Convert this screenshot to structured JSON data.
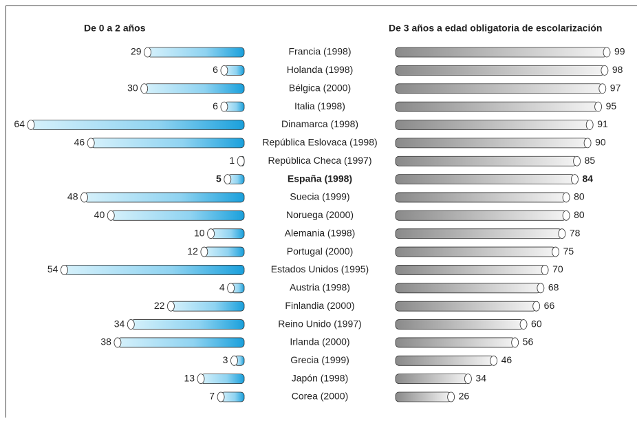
{
  "chart_data": {
    "type": "butterfly",
    "categories": [
      "Francia (1998)",
      "Holanda (1998)",
      "Bélgica (2000)",
      "Italia (1998)",
      "Dinamarca (1998)",
      "República Eslovaca (1998)",
      "República Checa (1997)",
      "España (1998)",
      "Suecia (1999)",
      "Noruega (2000)",
      "Alemania (1998)",
      "Portugal (2000)",
      "Estados Unidos (1995)",
      "Austria (1998)",
      "Finlandia (2000)",
      "Reino Unido (1997)",
      "Irlanda (2000)",
      "Grecia (1999)",
      "Japón (1998)",
      "Corea (2000)"
    ],
    "highlight_category": "España (1998)",
    "series": [
      {
        "name": "De 0 a 2 años",
        "color": "#1aa0dc",
        "values": [
          29,
          6,
          30,
          6,
          64,
          46,
          1,
          5,
          48,
          40,
          10,
          12,
          54,
          4,
          22,
          34,
          38,
          3,
          13,
          7
        ]
      },
      {
        "name": "De 3 años a edad obligatoria de escolarización",
        "color": "#8a8a8a",
        "values": [
          99,
          98,
          97,
          95,
          91,
          90,
          85,
          84,
          80,
          80,
          78,
          75,
          70,
          68,
          66,
          60,
          56,
          46,
          34,
          26
        ]
      }
    ]
  }
}
